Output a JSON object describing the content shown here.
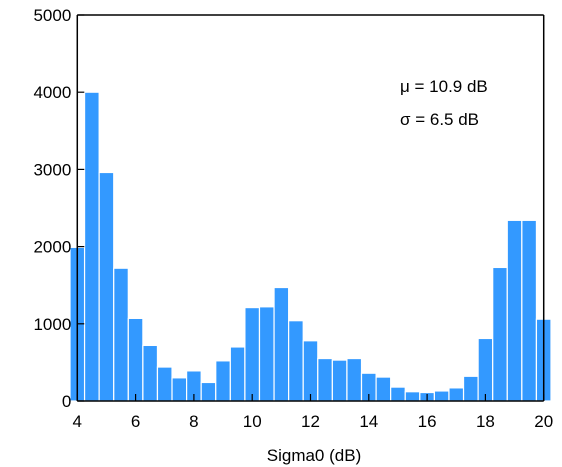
{
  "chart_data": {
    "type": "bar",
    "subtype": "histogram",
    "title": "",
    "xlabel": "Sigma0 (dB)",
    "ylabel": "",
    "xlim": [
      4,
      20
    ],
    "ylim": [
      0,
      5000
    ],
    "xticks": [
      4,
      6,
      8,
      10,
      12,
      14,
      16,
      18,
      20
    ],
    "yticks": [
      0,
      1000,
      2000,
      3000,
      4000,
      5000
    ],
    "bin_width": 0.5,
    "bin_starts": [
      3.75,
      4.25,
      4.75,
      5.25,
      5.75,
      6.25,
      6.75,
      7.25,
      7.75,
      8.25,
      8.75,
      9.25,
      9.75,
      10.25,
      10.75,
      11.25,
      11.75,
      12.25,
      12.75,
      13.25,
      13.75,
      14.25,
      14.75,
      15.25,
      15.75,
      16.25,
      16.75,
      17.25,
      17.75,
      18.25,
      18.75,
      19.25,
      19.75
    ],
    "values": [
      1990,
      4000,
      2960,
      1720,
      1070,
      720,
      440,
      300,
      390,
      240,
      520,
      700,
      1210,
      1220,
      1470,
      1040,
      780,
      550,
      530,
      550,
      360,
      310,
      180,
      120,
      110,
      130,
      170,
      320,
      810,
      1730,
      2340,
      2340,
      1060
    ],
    "bar_color": "#3399ff",
    "annotations": [
      "μ = 10.9 dB",
      "σ = 6.5 dB"
    ],
    "grid": false,
    "legend": false
  }
}
